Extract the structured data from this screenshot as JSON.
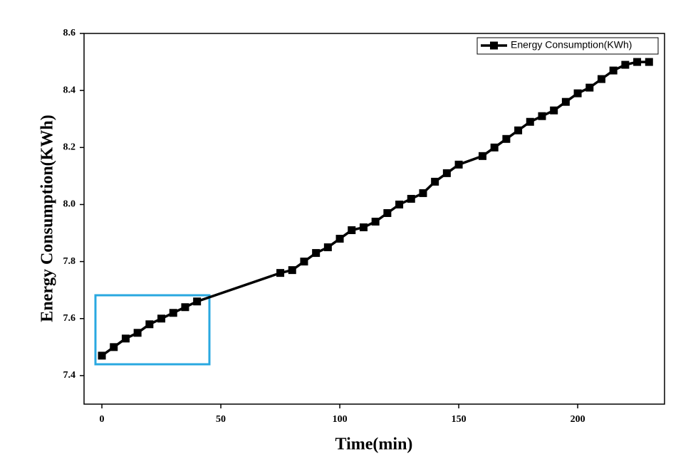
{
  "chart_data": {
    "type": "line",
    "x_label": "Time(min)",
    "y_label": "Energy Consumption(KWh)",
    "x": [
      0,
      5,
      10,
      15,
      20,
      25,
      30,
      35,
      40,
      75,
      80,
      85,
      90,
      95,
      100,
      105,
      110,
      115,
      120,
      125,
      130,
      135,
      140,
      145,
      150,
      160,
      165,
      170,
      175,
      180,
      185,
      190,
      195,
      200,
      205,
      210,
      215,
      220,
      225,
      230
    ],
    "series": [
      {
        "name": "Energy Consumption(KWh)",
        "color": "#000000",
        "values": [
          7.47,
          7.5,
          7.53,
          7.55,
          7.58,
          7.6,
          7.62,
          7.64,
          7.66,
          7.76,
          7.77,
          7.8,
          7.83,
          7.85,
          7.88,
          7.91,
          7.92,
          7.94,
          7.97,
          8.0,
          8.02,
          8.04,
          8.08,
          8.11,
          8.14,
          8.17,
          8.2,
          8.23,
          8.26,
          8.29,
          8.31,
          8.33,
          8.36,
          8.39,
          8.41,
          8.44,
          8.47,
          8.49,
          8.5,
          8.5
        ]
      }
    ],
    "xlim": [
      -7.5,
      236.5
    ],
    "xticks": [
      0,
      50,
      100,
      150,
      200
    ],
    "ylim": [
      7.3,
      8.6
    ],
    "yticks": [
      7.4,
      7.6,
      7.8,
      {
        "value": 8,
        "label": "8.0"
      },
      8.2,
      8.4,
      8.6
    ],
    "legend": "top-right",
    "grid": false
  }
}
